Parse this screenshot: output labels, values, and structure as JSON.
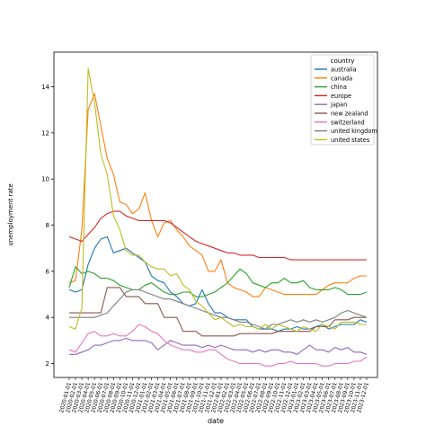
{
  "chart_data": {
    "type": "line",
    "title": "",
    "xlabel": "date",
    "ylabel": "unemployment rate",
    "ylim": [
      1.4,
      15.5
    ],
    "yticks": [
      2,
      4,
      6,
      8,
      10,
      12,
      14
    ],
    "grid": false,
    "legend_title": "country",
    "legend_position": "top-right",
    "categories": [
      "2020-01-01",
      "2020-02-01",
      "2020-03-01",
      "2020-04-01",
      "2020-05-01",
      "2020-06-01",
      "2020-07-01",
      "2020-08-01",
      "2020-09-01",
      "2020-10-01",
      "2020-11-01",
      "2020-12-01",
      "2021-01-01",
      "2021-02-01",
      "2021-03-01",
      "2021-04-01",
      "2021-05-01",
      "2021-06-01",
      "2021-07-01",
      "2021-08-01",
      "2021-09-01",
      "2021-10-01",
      "2021-11-01",
      "2021-12-01",
      "2022-01-01",
      "2022-02-01",
      "2022-03-01",
      "2022-04-01",
      "2022-05-01",
      "2022-06-01",
      "2022-07-01",
      "2022-08-01",
      "2022-09-01",
      "2022-10-01",
      "2022-11-01",
      "2022-12-01",
      "2023-01-01",
      "2023-02-01",
      "2023-03-01",
      "2023-04-01",
      "2023-05-01",
      "2023-06-01",
      "2023-07-01",
      "2023-08-01",
      "2023-09-01",
      "2023-10-01",
      "2023-11-01",
      "2023-12-01"
    ],
    "series": [
      {
        "name": "australia",
        "color": "#1f77b4",
        "values": [
          5.2,
          5.1,
          5.2,
          6.3,
          7.0,
          7.4,
          7.5,
          6.8,
          6.9,
          7.0,
          6.8,
          6.6,
          6.4,
          5.8,
          5.6,
          5.5,
          5.1,
          4.9,
          4.6,
          4.5,
          4.6,
          5.2,
          4.6,
          4.2,
          4.2,
          4.0,
          3.9,
          3.9,
          3.9,
          3.6,
          3.5,
          3.5,
          3.5,
          3.4,
          3.5,
          3.5,
          3.6,
          3.5,
          3.5,
          3.6,
          3.7,
          3.5,
          3.6,
          3.7,
          3.7,
          3.7,
          3.9,
          3.8
        ]
      },
      {
        "name": "canada",
        "color": "#ff7f0e",
        "values": [
          5.5,
          5.6,
          7.8,
          13.0,
          13.7,
          12.3,
          10.9,
          10.2,
          9.0,
          8.9,
          8.5,
          8.7,
          9.4,
          8.2,
          7.5,
          8.1,
          8.2,
          7.8,
          7.5,
          7.1,
          6.9,
          6.7,
          6.0,
          6.0,
          6.5,
          5.5,
          5.3,
          5.2,
          5.1,
          4.9,
          4.9,
          5.3,
          5.2,
          5.1,
          5.0,
          5.0,
          5.0,
          5.0,
          5.0,
          5.0,
          5.2,
          5.4,
          5.5,
          5.5,
          5.5,
          5.7,
          5.8,
          5.8
        ]
      },
      {
        "name": "china",
        "color": "#2ca02c",
        "values": [
          5.3,
          6.2,
          5.9,
          6.0,
          5.9,
          5.7,
          5.7,
          5.6,
          5.4,
          5.3,
          5.2,
          5.2,
          5.4,
          5.5,
          5.3,
          5.1,
          5.0,
          5.0,
          5.1,
          5.1,
          4.9,
          4.9,
          5.0,
          5.1,
          5.3,
          5.5,
          5.8,
          6.1,
          5.9,
          5.5,
          5.4,
          5.3,
          5.5,
          5.5,
          5.7,
          5.5,
          5.5,
          5.6,
          5.3,
          5.2,
          5.2,
          5.2,
          5.3,
          5.2,
          5.0,
          5.0,
          5.0,
          5.1
        ]
      },
      {
        "name": "europe",
        "color": "#d62728",
        "values": [
          7.5,
          7.4,
          7.3,
          7.6,
          7.9,
          8.3,
          8.5,
          8.6,
          8.6,
          8.4,
          8.3,
          8.2,
          8.2,
          8.2,
          8.2,
          8.2,
          8.1,
          7.9,
          7.7,
          7.5,
          7.3,
          7.2,
          7.1,
          7.0,
          6.9,
          6.8,
          6.8,
          6.7,
          6.7,
          6.7,
          6.6,
          6.6,
          6.6,
          6.6,
          6.6,
          6.5,
          6.5,
          6.5,
          6.5,
          6.5,
          6.5,
          6.5,
          6.5,
          6.5,
          6.5,
          6.5,
          6.5,
          6.5
        ]
      },
      {
        "name": "japan",
        "color": "#9467bd",
        "values": [
          2.4,
          2.4,
          2.5,
          2.6,
          2.8,
          2.8,
          2.9,
          3.0,
          3.0,
          3.1,
          3.0,
          3.0,
          3.0,
          2.9,
          2.6,
          2.8,
          3.0,
          2.9,
          2.8,
          2.8,
          2.8,
          2.7,
          2.8,
          2.7,
          2.8,
          2.7,
          2.6,
          2.6,
          2.6,
          2.5,
          2.6,
          2.5,
          2.6,
          2.6,
          2.5,
          2.5,
          2.4,
          2.6,
          2.8,
          2.6,
          2.6,
          2.5,
          2.7,
          2.6,
          2.7,
          2.5,
          2.5,
          2.4
        ]
      },
      {
        "name": "new zealand",
        "color": "#8c564b",
        "values": [
          4.2,
          4.2,
          4.2,
          4.2,
          4.2,
          4.2,
          5.3,
          5.3,
          5.3,
          4.9,
          4.9,
          4.9,
          4.6,
          4.6,
          4.6,
          4.0,
          4.0,
          4.0,
          3.4,
          3.4,
          3.4,
          3.2,
          3.2,
          3.2,
          3.2,
          3.2,
          3.2,
          3.3,
          3.3,
          3.3,
          3.3,
          3.3,
          3.3,
          3.4,
          3.4,
          3.4,
          3.4,
          3.4,
          3.4,
          3.6,
          3.6,
          3.6,
          3.9,
          3.9,
          3.9,
          4.0,
          4.0,
          4.0
        ]
      },
      {
        "name": "switzerland",
        "color": "#e377c2",
        "values": [
          2.6,
          2.5,
          2.9,
          3.3,
          3.4,
          3.2,
          3.2,
          3.3,
          3.2,
          3.2,
          3.4,
          3.7,
          3.6,
          3.4,
          3.3,
          3.0,
          2.8,
          2.7,
          2.6,
          2.6,
          2.5,
          2.5,
          2.6,
          2.6,
          2.4,
          2.2,
          2.1,
          2.0,
          2.0,
          2.0,
          2.0,
          1.9,
          1.9,
          2.0,
          2.0,
          2.1,
          2.0,
          2.0,
          2.0,
          2.0,
          1.9,
          1.9,
          2.0,
          2.0,
          2.0,
          2.1,
          2.1,
          2.3
        ]
      },
      {
        "name": "united kingdom",
        "color": "#7f7f7f",
        "values": [
          4.0,
          4.0,
          4.0,
          4.0,
          4.0,
          4.1,
          4.2,
          4.5,
          4.8,
          5.1,
          5.2,
          5.2,
          5.1,
          5.0,
          4.9,
          4.8,
          4.8,
          4.7,
          4.6,
          4.5,
          4.4,
          4.3,
          4.2,
          4.1,
          4.0,
          4.0,
          3.9,
          3.8,
          3.8,
          3.7,
          3.6,
          3.5,
          3.7,
          3.7,
          3.8,
          3.9,
          3.8,
          3.9,
          3.8,
          3.9,
          3.8,
          3.9,
          4.0,
          4.2,
          4.3,
          4.2,
          4.1,
          4.0
        ]
      },
      {
        "name": "united states",
        "color": "#bcbd22",
        "values": [
          3.6,
          3.5,
          4.4,
          14.8,
          13.3,
          11.1,
          10.2,
          8.4,
          7.8,
          6.9,
          6.7,
          6.7,
          6.4,
          6.2,
          6.1,
          6.1,
          5.8,
          5.9,
          5.4,
          5.2,
          4.7,
          4.5,
          4.2,
          3.9,
          4.0,
          3.8,
          3.6,
          3.7,
          3.6,
          3.6,
          3.5,
          3.7,
          3.5,
          3.7,
          3.6,
          3.5,
          3.4,
          3.6,
          3.5,
          3.4,
          3.7,
          3.6,
          3.5,
          3.8,
          3.8,
          3.8,
          3.7,
          3.7
        ]
      }
    ]
  }
}
